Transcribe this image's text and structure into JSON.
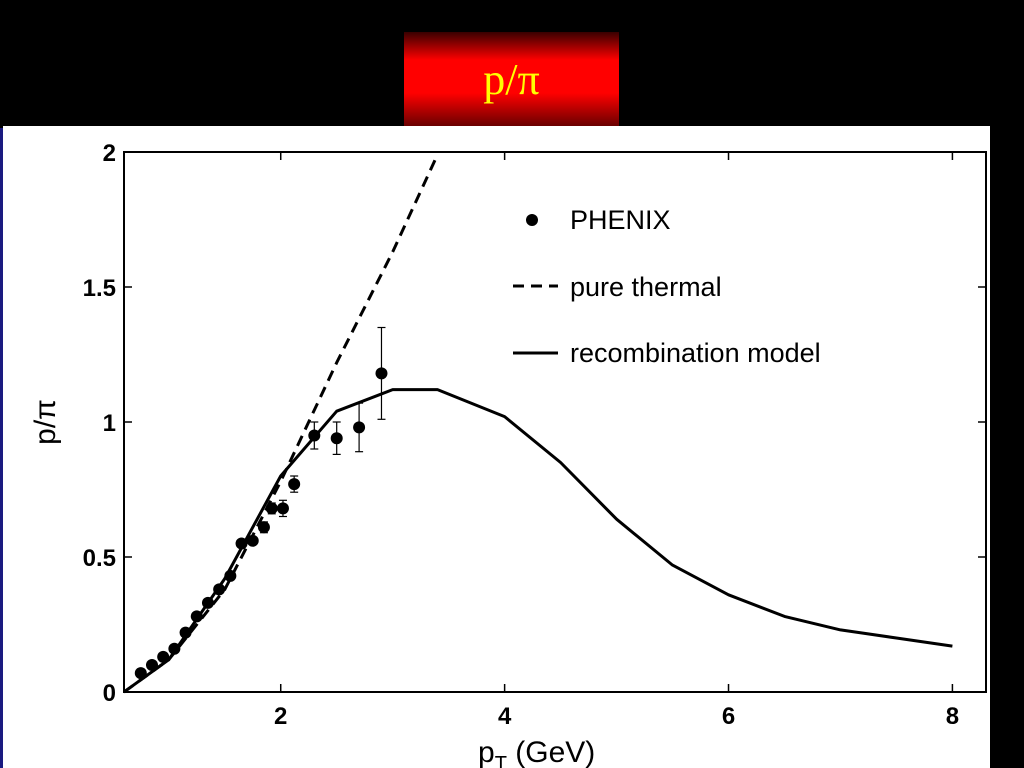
{
  "slide": {
    "title": "p/π",
    "colors": {
      "background": "#000000",
      "banner": "#ff0000",
      "title_text": "#ffff00",
      "plot_bg": "#ffffff"
    }
  },
  "chart_data": {
    "type": "line",
    "title": "",
    "xlabel": "p",
    "xlabel_sub": "T",
    "xlabel_unit": " (GeV)",
    "ylabel": "p/π",
    "xlim": [
      0.6,
      8.3
    ],
    "ylim": [
      0,
      2
    ],
    "xticks": [
      2,
      4,
      6,
      8
    ],
    "xtick_labels": [
      "2",
      "4",
      "6",
      "8"
    ],
    "yticks": [
      0,
      0.5,
      1,
      1.5,
      2
    ],
    "ytick_labels": [
      "0",
      "0.5",
      "1",
      "1.5",
      "2"
    ],
    "grid": false,
    "legend_position": "top-right",
    "series": [
      {
        "name": "PHENIX",
        "kind": "scatter",
        "marker": "filled-circle",
        "points": [
          {
            "x": 0.75,
            "y": 0.07,
            "err": 0.01
          },
          {
            "x": 0.85,
            "y": 0.1,
            "err": 0.01
          },
          {
            "x": 0.95,
            "y": 0.13,
            "err": 0.01
          },
          {
            "x": 1.05,
            "y": 0.16,
            "err": 0.01
          },
          {
            "x": 1.15,
            "y": 0.22,
            "err": 0.01
          },
          {
            "x": 1.25,
            "y": 0.28,
            "err": 0.01
          },
          {
            "x": 1.35,
            "y": 0.33,
            "err": 0.01
          },
          {
            "x": 1.45,
            "y": 0.38,
            "err": 0.01
          },
          {
            "x": 1.55,
            "y": 0.43,
            "err": 0.01
          },
          {
            "x": 1.65,
            "y": 0.55,
            "err": 0.01
          },
          {
            "x": 1.75,
            "y": 0.56,
            "err": 0.01
          },
          {
            "x": 1.85,
            "y": 0.61,
            "err": 0.02
          },
          {
            "x": 1.92,
            "y": 0.68,
            "err": 0.02
          },
          {
            "x": 2.02,
            "y": 0.68,
            "err": 0.03
          },
          {
            "x": 2.12,
            "y": 0.77,
            "err": 0.03
          },
          {
            "x": 2.3,
            "y": 0.95,
            "err": 0.05
          },
          {
            "x": 2.5,
            "y": 0.94,
            "err": 0.06
          },
          {
            "x": 2.7,
            "y": 0.98,
            "err": 0.09
          },
          {
            "x": 2.9,
            "y": 1.18,
            "err": 0.17
          }
        ]
      },
      {
        "name": "pure thermal",
        "kind": "line",
        "style": "dashed",
        "points": [
          {
            "x": 0.6,
            "y": 0.0
          },
          {
            "x": 1.0,
            "y": 0.12
          },
          {
            "x": 1.5,
            "y": 0.38
          },
          {
            "x": 2.0,
            "y": 0.78
          },
          {
            "x": 2.5,
            "y": 1.22
          },
          {
            "x": 3.0,
            "y": 1.63
          },
          {
            "x": 3.4,
            "y": 1.99
          }
        ]
      },
      {
        "name": "recombination model",
        "kind": "line",
        "style": "solid",
        "points": [
          {
            "x": 0.6,
            "y": 0.0
          },
          {
            "x": 1.0,
            "y": 0.12
          },
          {
            "x": 1.5,
            "y": 0.42
          },
          {
            "x": 2.0,
            "y": 0.8
          },
          {
            "x": 2.5,
            "y": 1.04
          },
          {
            "x": 3.0,
            "y": 1.12
          },
          {
            "x": 3.4,
            "y": 1.12
          },
          {
            "x": 4.0,
            "y": 1.02
          },
          {
            "x": 4.5,
            "y": 0.85
          },
          {
            "x": 5.0,
            "y": 0.64
          },
          {
            "x": 5.5,
            "y": 0.47
          },
          {
            "x": 6.0,
            "y": 0.36
          },
          {
            "x": 6.5,
            "y": 0.28
          },
          {
            "x": 7.0,
            "y": 0.23
          },
          {
            "x": 7.5,
            "y": 0.2
          },
          {
            "x": 8.0,
            "y": 0.17
          }
        ]
      }
    ]
  }
}
